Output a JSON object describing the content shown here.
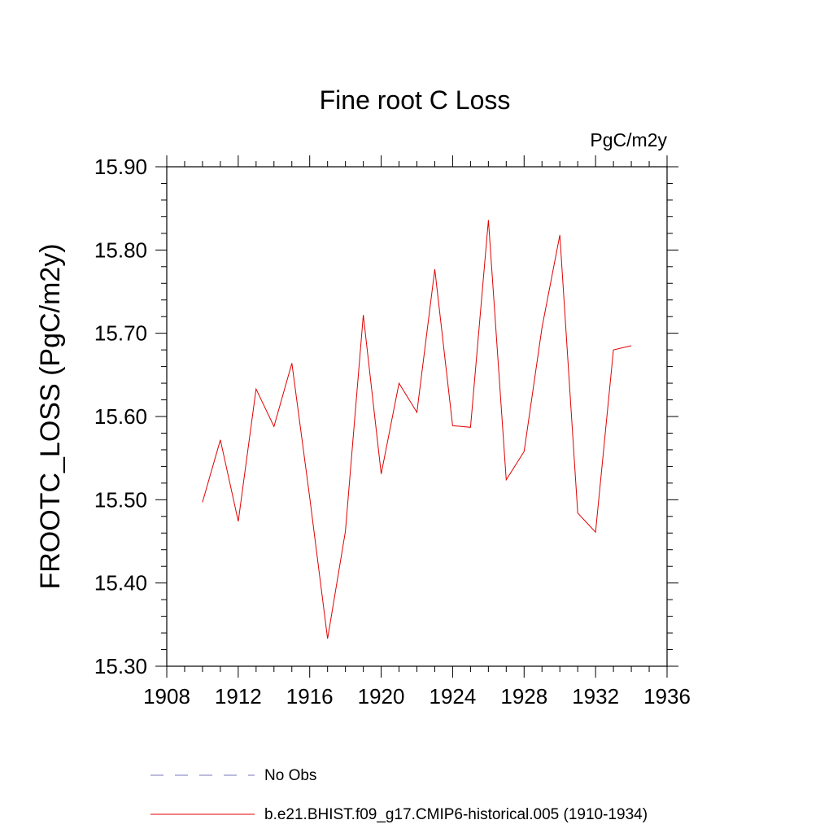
{
  "chart_data": {
    "type": "line",
    "title": "Fine root C Loss",
    "units": "PgC/m2y",
    "ylabel": "FROOTC_LOSS  (PgC/m2y)",
    "xlabel": "",
    "xlim": [
      1908,
      1936
    ],
    "ylim": [
      15.3,
      15.9
    ],
    "x_ticks": [
      "1908",
      "1912",
      "1916",
      "1920",
      "1924",
      "1928",
      "1932",
      "1936"
    ],
    "y_ticks": [
      "15.30",
      "15.40",
      "15.50",
      "15.60",
      "15.70",
      "15.80",
      "15.90"
    ],
    "grid": false,
    "legend_position": "bottom",
    "series": [
      {
        "name": "b.e21.BHIST.f09_g17.CMIP6-historical.005 (1910-1934)",
        "color": "#e00000",
        "style": "solid",
        "x": [
          1910,
          1911,
          1912,
          1913,
          1914,
          1915,
          1916,
          1917,
          1918,
          1919,
          1920,
          1921,
          1922,
          1923,
          1924,
          1925,
          1926,
          1927,
          1928,
          1929,
          1930,
          1931,
          1932,
          1933,
          1934
        ],
        "values": [
          15.497,
          15.572,
          15.474,
          15.633,
          15.588,
          15.664,
          15.503,
          15.333,
          15.462,
          15.722,
          15.531,
          15.64,
          15.605,
          15.777,
          15.589,
          15.587,
          15.836,
          15.524,
          15.558,
          15.707,
          15.818,
          15.484,
          15.461,
          15.68,
          15.685
        ]
      }
    ],
    "legend": [
      {
        "label": "No Obs",
        "color": "#7777bb",
        "style": "dashed"
      },
      {
        "label": "b.e21.BHIST.f09_g17.CMIP6-historical.005 (1910-1934)",
        "color": "#e00000",
        "style": "solid"
      }
    ]
  }
}
